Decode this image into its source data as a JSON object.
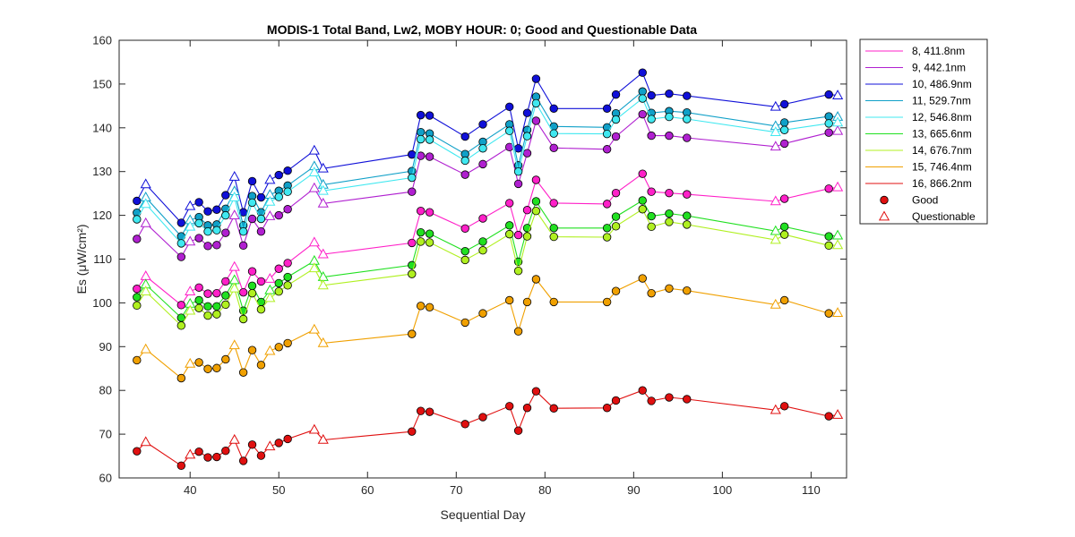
{
  "chart_data": {
    "type": "line",
    "title": "MODIS-1 Total Band,  Lw2, MOBY HOUR: 0;  Good and Questionable Data",
    "xlabel": "Sequential Day",
    "ylabel": "Es (μW/cm²)",
    "xlim": [
      32,
      114
    ],
    "ylim": [
      60,
      160
    ],
    "xticks": [
      40,
      50,
      60,
      70,
      80,
      90,
      100,
      110
    ],
    "yticks": [
      60,
      70,
      80,
      90,
      100,
      110,
      120,
      130,
      140,
      150,
      160
    ],
    "grid": false,
    "legend_position": "outside-right",
    "x": [
      34,
      35,
      39,
      40,
      41,
      42,
      43,
      44,
      45,
      46,
      47,
      48,
      49,
      50,
      51,
      54,
      55,
      65,
      66,
      67,
      71,
      73,
      76,
      77,
      78,
      79,
      81,
      87,
      88,
      91,
      92,
      94,
      96,
      106,
      107,
      112,
      113
    ],
    "quality": [
      "G",
      "Q",
      "G",
      "Q",
      "G",
      "G",
      "G",
      "G",
      "Q",
      "G",
      "G",
      "G",
      "Q",
      "G",
      "G",
      "Q",
      "Q",
      "G",
      "G",
      "G",
      "G",
      "G",
      "G",
      "G",
      "G",
      "G",
      "G",
      "G",
      "G",
      "G",
      "G",
      "G",
      "G",
      "Q",
      "G",
      "G",
      "Q"
    ],
    "series": [
      {
        "name": "8, 411.8nm",
        "color": "#ff20c8",
        "values": [
          103.2,
          106.1,
          99.5,
          102.6,
          103.5,
          102.1,
          102.2,
          104.9,
          108.2,
          102.4,
          107.2,
          104.9,
          105.5,
          107.8,
          109.1,
          113.8,
          111.1,
          113.7,
          121.0,
          120.7,
          117.0,
          119.3,
          122.8,
          115.5,
          121.2,
          128.1,
          122.8,
          122.6,
          125.1,
          129.5,
          125.4,
          125.1,
          124.8,
          123.2,
          123.8,
          126.1,
          126.4
        ]
      },
      {
        "name": "9, 442.1nm",
        "color": "#b020d0",
        "values": [
          114.6,
          118.2,
          110.5,
          114.0,
          114.8,
          113.0,
          113.2,
          116.0,
          120.0,
          113.1,
          119.2,
          116.3,
          119.8,
          120.0,
          121.4,
          126.2,
          122.7,
          125.4,
          133.6,
          133.4,
          129.3,
          131.7,
          135.6,
          127.2,
          134.2,
          141.6,
          135.4,
          135.1,
          138.0,
          143.1,
          138.2,
          138.2,
          137.7,
          135.7,
          136.4,
          138.9,
          139.3
        ]
      },
      {
        "name": "10, 486.9nm",
        "color": "#1010d8",
        "values": [
          123.3,
          127.1,
          118.3,
          122.1,
          123.0,
          120.9,
          121.3,
          124.6,
          128.8,
          120.7,
          127.8,
          124.1,
          128.1,
          129.2,
          130.2,
          134.8,
          130.7,
          133.9,
          142.9,
          142.8,
          138.0,
          140.8,
          144.8,
          135.3,
          143.4,
          151.2,
          144.4,
          144.4,
          147.6,
          152.6,
          147.4,
          147.8,
          147.3,
          144.8,
          145.4,
          147.6,
          147.4
        ]
      },
      {
        "name": "11, 529.7nm",
        "color": "#10a0c8",
        "values": [
          120.6,
          124.1,
          115.2,
          118.9,
          119.6,
          117.7,
          117.9,
          121.5,
          125.5,
          117.7,
          124.4,
          120.7,
          124.7,
          125.6,
          126.8,
          131.2,
          127.0,
          130.1,
          139.0,
          138.7,
          134.0,
          136.8,
          140.8,
          131.4,
          139.5,
          147.1,
          140.3,
          140.1,
          143.3,
          148.3,
          143.4,
          143.8,
          143.5,
          140.4,
          141.2,
          142.6,
          142.5
        ]
      },
      {
        "name": "12, 546.8nm",
        "color": "#40e8f0",
        "values": [
          119.1,
          122.6,
          113.6,
          117.4,
          118.2,
          116.3,
          116.6,
          120.0,
          124.1,
          116.3,
          122.9,
          119.2,
          123.1,
          124.2,
          125.4,
          129.8,
          125.6,
          128.6,
          137.4,
          137.3,
          132.5,
          135.3,
          139.3,
          130.0,
          138.1,
          145.6,
          138.7,
          138.6,
          141.9,
          146.7,
          142.0,
          142.5,
          142.0,
          139.0,
          139.5,
          141.0,
          141.2
        ]
      },
      {
        "name": "13, 665.6nm",
        "color": "#20e020",
        "values": [
          101.3,
          104.2,
          96.6,
          99.8,
          100.6,
          99.2,
          99.2,
          101.7,
          105.2,
          98.2,
          103.9,
          100.2,
          102.9,
          104.5,
          105.9,
          109.6,
          105.9,
          108.6,
          116.1,
          115.8,
          111.8,
          114.0,
          117.7,
          109.4,
          117.1,
          123.2,
          117.1,
          117.1,
          119.7,
          123.4,
          119.8,
          120.4,
          119.9,
          116.4,
          117.4,
          115.2,
          115.4
        ]
      },
      {
        "name": "14, 676.7nm",
        "color": "#b0f020",
        "values": [
          99.4,
          102.6,
          94.8,
          98.2,
          98.8,
          97.1,
          97.4,
          99.6,
          103.3,
          96.3,
          102.2,
          98.5,
          101.1,
          102.6,
          104.0,
          107.9,
          104.0,
          106.6,
          114.0,
          113.8,
          109.8,
          112.0,
          115.7,
          107.3,
          115.2,
          121.0,
          115.1,
          115.0,
          117.5,
          121.4,
          117.4,
          118.5,
          117.9,
          114.4,
          115.6,
          113.1,
          113.2
        ]
      },
      {
        "name": "15, 746.4nm",
        "color": "#f0a000",
        "values": [
          86.9,
          89.4,
          82.8,
          86.1,
          86.4,
          84.9,
          85.1,
          87.1,
          90.3,
          84.1,
          89.2,
          85.8,
          89.0,
          89.9,
          90.8,
          93.9,
          90.8,
          92.9,
          99.3,
          99.0,
          95.5,
          97.6,
          100.6,
          93.5,
          100.2,
          105.4,
          100.2,
          100.2,
          102.7,
          105.6,
          102.2,
          103.3,
          102.8,
          99.6,
          100.6,
          97.6,
          97.7
        ]
      },
      {
        "name": "16, 866.2nm",
        "color": "#e01010",
        "values": [
          66.1,
          68.2,
          62.8,
          65.3,
          66.0,
          64.7,
          64.8,
          66.2,
          68.7,
          63.9,
          67.6,
          65.1,
          67.2,
          68.0,
          68.9,
          71.0,
          68.7,
          70.6,
          75.3,
          75.1,
          72.3,
          73.9,
          76.4,
          70.8,
          76.0,
          79.8,
          75.9,
          76.0,
          77.7,
          80.0,
          77.6,
          78.4,
          78.0,
          75.5,
          76.4,
          74.1,
          74.4
        ]
      }
    ],
    "markers": [
      {
        "name": "Good",
        "shape": "circle"
      },
      {
        "name": "Questionable",
        "shape": "triangle"
      }
    ]
  }
}
